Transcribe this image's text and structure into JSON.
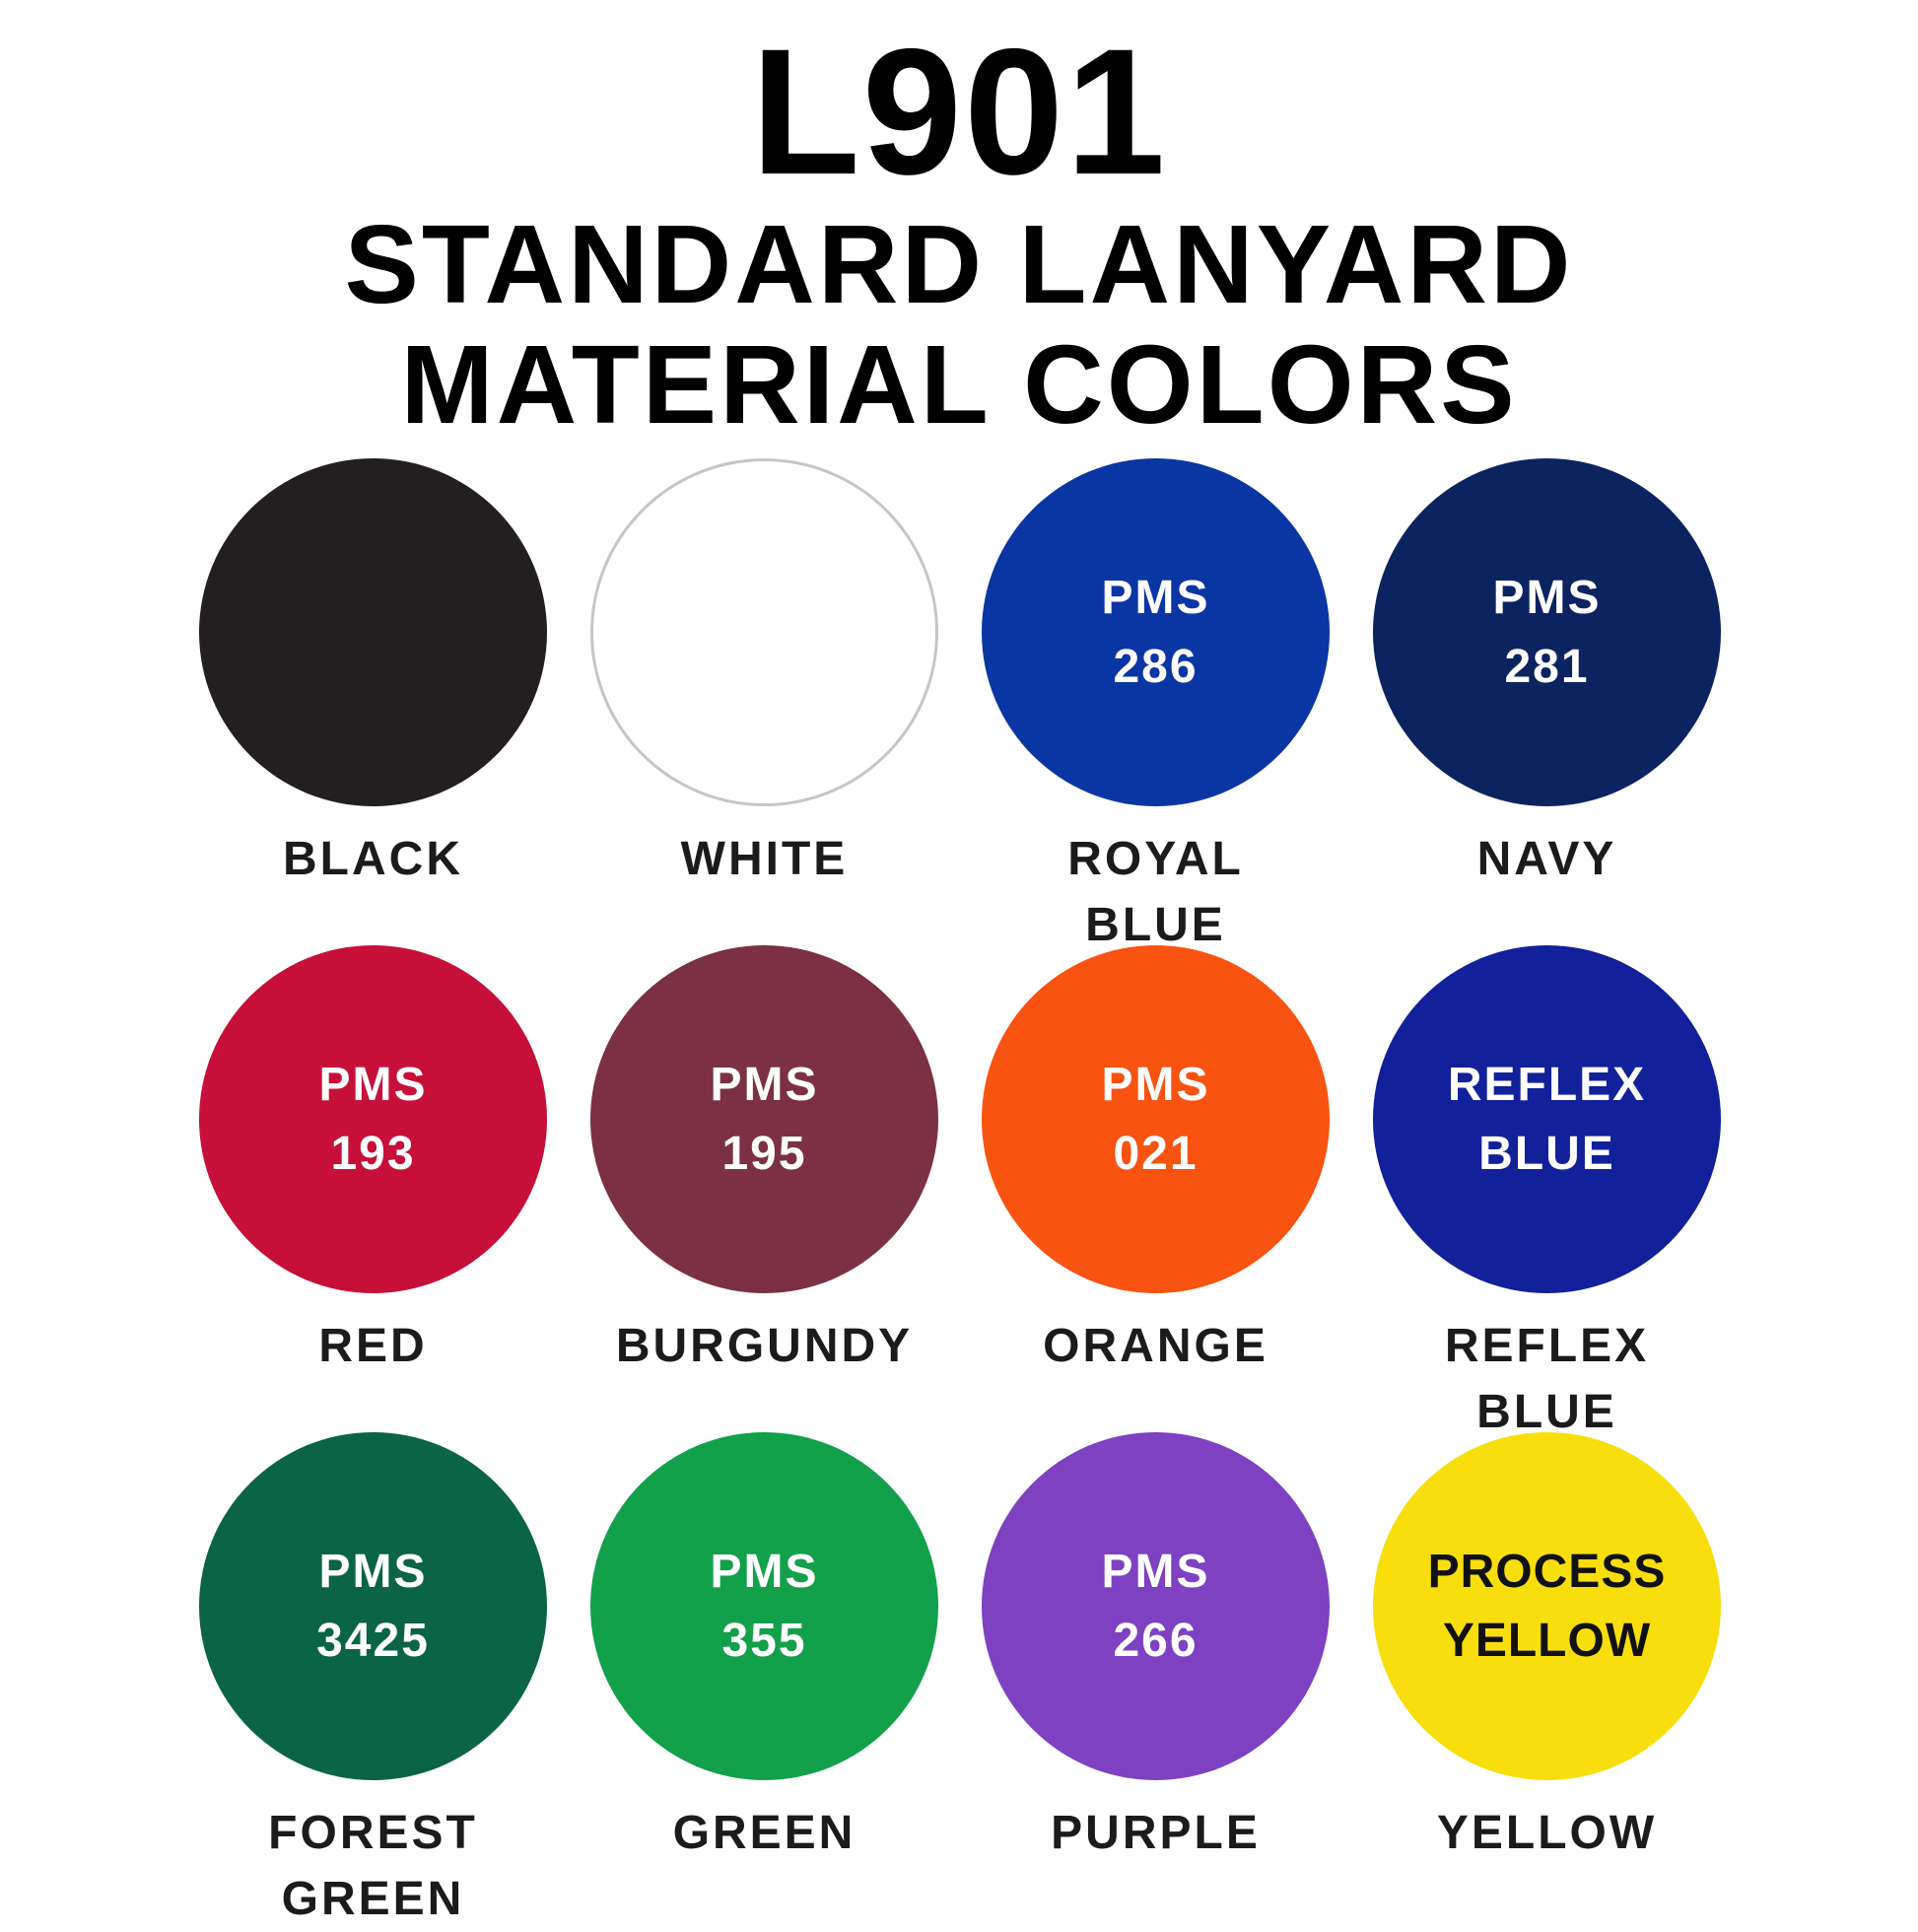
{
  "page": {
    "title": "L901",
    "subtitle_line1": "STANDARD LANYARD",
    "subtitle_line2": "MATERIAL COLORS"
  },
  "colors": {
    "background": "#FFFFFF",
    "title_text": "#000000",
    "label_text": "#1B1B1B",
    "white_swatch_border": "#C5C6C8"
  },
  "swatches": [
    {
      "id": "black",
      "label_lines": [
        "BLACK"
      ],
      "circle_lines": [],
      "fill": "#231F20",
      "border": null,
      "text_color": "#FFFFFF",
      "circle_text_bold": false
    },
    {
      "id": "white",
      "label_lines": [
        "WHITE"
      ],
      "circle_lines": [],
      "fill": "#FFFFFF",
      "border": "#C5C6C8",
      "text_color": "#1B1B1B",
      "circle_text_bold": false
    },
    {
      "id": "royal-blue",
      "label_lines": [
        "ROYAL",
        "BLUE"
      ],
      "circle_lines": [
        "PMS",
        "286"
      ],
      "fill": "#0A36A3",
      "border": null,
      "text_color": "#FFFFFF",
      "circle_text_bold": false
    },
    {
      "id": "navy",
      "label_lines": [
        "NAVY"
      ],
      "circle_lines": [
        "PMS",
        "281"
      ],
      "fill": "#0B2460",
      "border": null,
      "text_color": "#FFFFFF",
      "circle_text_bold": false
    },
    {
      "id": "red",
      "label_lines": [
        "RED"
      ],
      "circle_lines": [
        "PMS",
        "193"
      ],
      "fill": "#C61039",
      "border": null,
      "text_color": "#FFFFFF",
      "circle_text_bold": false
    },
    {
      "id": "burgundy",
      "label_lines": [
        "BURGUNDY"
      ],
      "circle_lines": [
        "PMS",
        "195"
      ],
      "fill": "#7B3043",
      "border": null,
      "text_color": "#FFFFFF",
      "circle_text_bold": false
    },
    {
      "id": "orange",
      "label_lines": [
        "ORANGE"
      ],
      "circle_lines": [
        "PMS",
        "021"
      ],
      "fill": "#F85311",
      "border": null,
      "text_color": "#FFFFFF",
      "circle_text_bold": false
    },
    {
      "id": "reflex-blue",
      "label_lines": [
        "REFLEX",
        "BLUE"
      ],
      "circle_lines": [
        "REFLEX",
        "BLUE"
      ],
      "fill": "#12209A",
      "border": null,
      "text_color": "#FFFFFF",
      "circle_text_bold": false
    },
    {
      "id": "forest-green",
      "label_lines": [
        "FOREST",
        "GREEN"
      ],
      "circle_lines": [
        "PMS",
        "3425"
      ],
      "fill": "#0A6445",
      "border": null,
      "text_color": "#FFFFFF",
      "circle_text_bold": false
    },
    {
      "id": "green",
      "label_lines": [
        "GREEN"
      ],
      "circle_lines": [
        "PMS",
        "355"
      ],
      "fill": "#12A04A",
      "border": null,
      "text_color": "#FFFFFF",
      "circle_text_bold": false
    },
    {
      "id": "purple",
      "label_lines": [
        "PURPLE"
      ],
      "circle_lines": [
        "PMS",
        "266"
      ],
      "fill": "#7D41C1",
      "border": null,
      "text_color": "#FFFFFF",
      "circle_text_bold": false
    },
    {
      "id": "yellow",
      "label_lines": [
        "YELLOW"
      ],
      "circle_lines": [
        "PROCESS",
        "YELLOW"
      ],
      "fill": "#F8DE0D",
      "border": null,
      "text_color": "#111111",
      "circle_text_bold": true
    }
  ]
}
